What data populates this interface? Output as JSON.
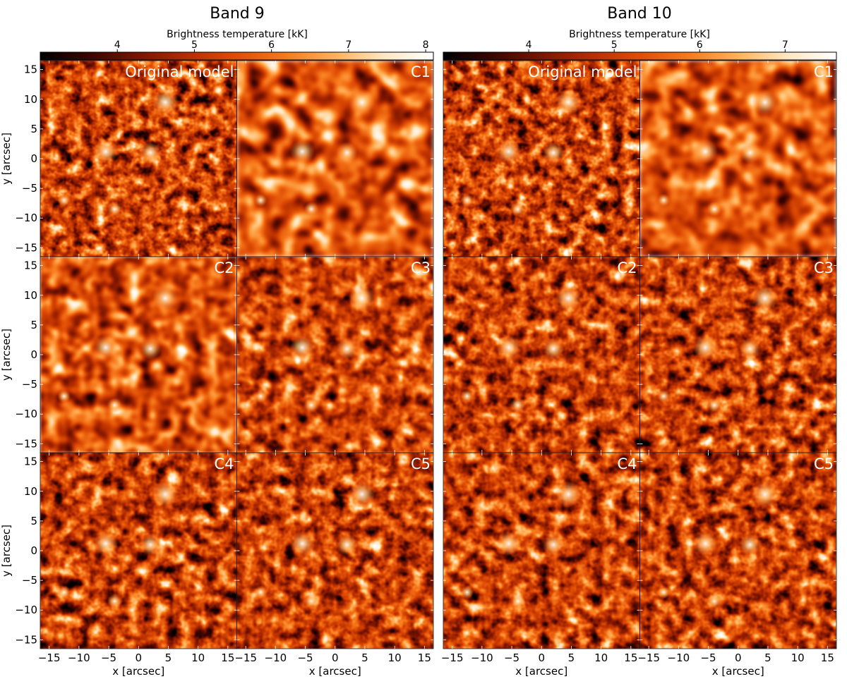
{
  "figures": [
    {
      "title": "Band 9",
      "colorbar": {
        "label": "Brightness temperature [kK]",
        "min": 3.0,
        "max": 8.1,
        "ticks": [
          4,
          5,
          6,
          7,
          8
        ]
      },
      "panels": [
        {
          "label": "Original model",
          "kind": "original"
        },
        {
          "label": "C1",
          "kind": "c1"
        },
        {
          "label": "C2",
          "kind": "smooth"
        },
        {
          "label": "C3",
          "kind": "medium"
        },
        {
          "label": "C4",
          "kind": "fine"
        },
        {
          "label": "C5",
          "kind": "fine"
        }
      ]
    },
    {
      "title": "Band 10",
      "colorbar": {
        "label": "Brightness temperature [kK]",
        "min": 3.0,
        "max": 7.6,
        "ticks": [
          4,
          5,
          6,
          7
        ]
      },
      "panels": [
        {
          "label": "Original model",
          "kind": "original"
        },
        {
          "label": "C1",
          "kind": "c1"
        },
        {
          "label": "C2",
          "kind": "fine"
        },
        {
          "label": "C3",
          "kind": "fine"
        },
        {
          "label": "C4",
          "kind": "fine"
        },
        {
          "label": "C5",
          "kind": "fine"
        }
      ]
    }
  ],
  "axes": {
    "xlabel": "x [arcsec]",
    "ylabel": "y [arcsec]",
    "xlim": [
      -16.5,
      16.5
    ],
    "ylim": [
      -16.5,
      16.5
    ],
    "xticks": [
      "−15",
      "−10",
      "−5",
      "0",
      "5",
      "10",
      "15"
    ],
    "yticks": [
      "15",
      "10",
      "5",
      "0",
      "−5",
      "−10",
      "−15"
    ],
    "tick_values": [
      -15,
      -10,
      -5,
      0,
      5,
      10,
      15
    ]
  },
  "colormap": [
    "#000000",
    "#3b0500",
    "#7a1500",
    "#b52d00",
    "#e04d05",
    "#f77a1c",
    "#ffb25a",
    "#ffe7c4",
    "#ffffff"
  ]
}
